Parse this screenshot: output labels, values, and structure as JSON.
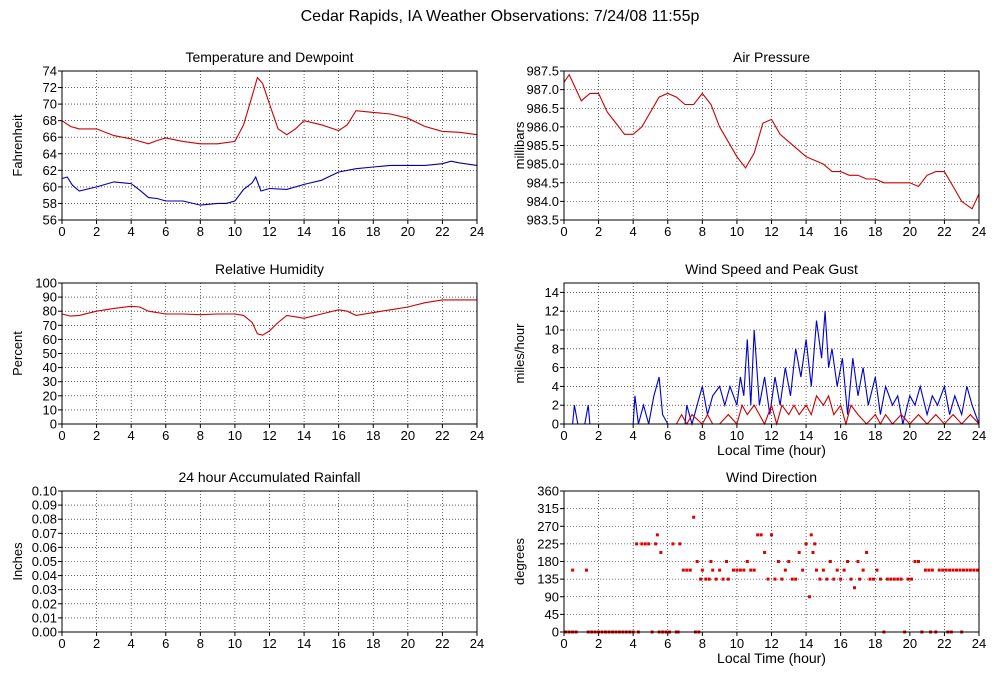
{
  "title": "Cedar Rapids, IA Weather Observations: 7/24/08 11:55p",
  "chart_data": [
    {
      "id": "temp",
      "type": "line",
      "title": "Temperature and Dewpoint",
      "xlabel": "",
      "ylabel": "Fahrenheit",
      "xlim": [
        0,
        24
      ],
      "ylim": [
        56,
        74
      ],
      "xticks": [
        0,
        2,
        4,
        6,
        8,
        10,
        12,
        14,
        16,
        18,
        20,
        22,
        24
      ],
      "yticks": [
        56,
        58,
        60,
        62,
        64,
        66,
        68,
        70,
        72,
        74
      ],
      "ytick_labels": [
        "56",
        "58",
        "60",
        "62",
        "64",
        "66",
        "68",
        "70",
        "72",
        "74"
      ],
      "grid": true,
      "series": [
        {
          "color": "#cc0000",
          "x": [
            0,
            0.5,
            1,
            2,
            3,
            4,
            5,
            5.5,
            6,
            7,
            8,
            9,
            10,
            10.5,
            11,
            11.3,
            11.6,
            12,
            12.5,
            13,
            13.5,
            14,
            15,
            16,
            16.5,
            17,
            18,
            19,
            20,
            21,
            22,
            23,
            24
          ],
          "y": [
            68,
            67.3,
            67,
            67,
            66.2,
            65.8,
            65.2,
            65.6,
            65.9,
            65.5,
            65.2,
            65.2,
            65.5,
            67.5,
            71,
            73.2,
            72.5,
            70,
            67,
            66.3,
            67,
            68,
            67.5,
            66.8,
            67.5,
            69.2,
            69,
            68.8,
            68.3,
            67.3,
            66.7,
            66.6,
            66.3
          ]
        },
        {
          "color": "#0000aa",
          "x": [
            0,
            0.3,
            0.6,
            1,
            2,
            3,
            4,
            4.5,
            5,
            5.5,
            6,
            7,
            8,
            9,
            9.5,
            10,
            10.5,
            11,
            11.2,
            11.5,
            12,
            13,
            14,
            15,
            16,
            17,
            18,
            19,
            20,
            21,
            22,
            22.5,
            23,
            24
          ],
          "y": [
            61,
            61.2,
            60.2,
            59.5,
            60,
            60.6,
            60.4,
            59.6,
            58.7,
            58.6,
            58.3,
            58.3,
            57.8,
            58,
            58,
            58.3,
            59.7,
            60.5,
            61.2,
            59.5,
            59.8,
            59.7,
            60.3,
            60.8,
            61.8,
            62.2,
            62.4,
            62.6,
            62.6,
            62.6,
            62.8,
            63.1,
            62.9,
            62.6
          ]
        }
      ]
    },
    {
      "id": "pressure",
      "type": "line",
      "title": "Air Pressure",
      "xlabel": "",
      "ylabel": "millibars",
      "xlim": [
        0,
        24
      ],
      "ylim": [
        983.5,
        987.5
      ],
      "xticks": [
        0,
        2,
        4,
        6,
        8,
        10,
        12,
        14,
        16,
        18,
        20,
        22,
        24
      ],
      "yticks": [
        983.5,
        984.0,
        984.5,
        985.0,
        985.5,
        986.0,
        986.5,
        987.0,
        987.5
      ],
      "ytick_labels": [
        "983.5",
        "984.0",
        "984.5",
        "985.0",
        "985.5",
        "986.0",
        "986.5",
        "987.0",
        "987.5"
      ],
      "grid": true,
      "series": [
        {
          "color": "#cc0000",
          "x": [
            0,
            0.3,
            0.6,
            1,
            1.5,
            2,
            2.5,
            3,
            3.5,
            4,
            4.5,
            5,
            5.5,
            6,
            6.5,
            7,
            7.5,
            8,
            8.5,
            9,
            9.5,
            10,
            10.5,
            11,
            11.5,
            12,
            12.5,
            13,
            13.5,
            14,
            14.5,
            15,
            15.5,
            16,
            16.5,
            17,
            17.5,
            18,
            18.5,
            19,
            19.5,
            20,
            20.5,
            21,
            21.5,
            22,
            22.5,
            23,
            23.3,
            23.6,
            24
          ],
          "y": [
            987.2,
            987.4,
            987.1,
            986.7,
            986.9,
            986.9,
            986.4,
            986.1,
            985.8,
            985.8,
            986.0,
            986.4,
            986.8,
            986.9,
            986.8,
            986.6,
            986.6,
            986.9,
            986.6,
            986.0,
            985.6,
            985.2,
            984.9,
            985.3,
            986.1,
            986.2,
            985.8,
            985.6,
            985.4,
            985.2,
            985.1,
            985.0,
            984.8,
            984.8,
            984.7,
            984.7,
            984.6,
            984.6,
            984.5,
            984.5,
            984.5,
            984.5,
            984.4,
            984.7,
            984.8,
            984.8,
            984.4,
            984.0,
            983.9,
            983.8,
            984.2
          ]
        }
      ]
    },
    {
      "id": "humidity",
      "type": "line",
      "title": "Relative Humidity",
      "xlabel": "",
      "ylabel": "Percent",
      "xlim": [
        0,
        24
      ],
      "ylim": [
        0,
        100
      ],
      "xticks": [
        0,
        2,
        4,
        6,
        8,
        10,
        12,
        14,
        16,
        18,
        20,
        22,
        24
      ],
      "yticks": [
        0,
        10,
        20,
        30,
        40,
        50,
        60,
        70,
        80,
        90,
        100
      ],
      "ytick_labels": [
        "0",
        "10",
        "20",
        "30",
        "40",
        "50",
        "60",
        "70",
        "80",
        "90",
        "100"
      ],
      "grid": true,
      "series": [
        {
          "color": "#cc0000",
          "x": [
            0,
            0.5,
            1,
            2,
            3,
            4,
            4.5,
            5,
            6,
            7,
            8,
            9,
            10,
            10.5,
            11,
            11.3,
            11.6,
            12,
            12.5,
            13,
            13.5,
            14,
            15,
            16,
            16.5,
            17,
            18,
            19,
            20,
            21,
            22,
            23,
            24
          ],
          "y": [
            78,
            76.5,
            77,
            80,
            82,
            83.5,
            83,
            80,
            78,
            78,
            77.5,
            78,
            78,
            77,
            72,
            64,
            63,
            66,
            72,
            77,
            76,
            75,
            78,
            81,
            80,
            77,
            79,
            81,
            83,
            86,
            88,
            88,
            88
          ]
        }
      ]
    },
    {
      "id": "wind",
      "type": "line",
      "title": "Wind Speed and Peak Gust",
      "xlabel": "Local Time (hour)",
      "ylabel": "miles/hour",
      "xlim": [
        0,
        24
      ],
      "ylim": [
        0,
        15
      ],
      "xticks": [
        0,
        2,
        4,
        6,
        8,
        10,
        12,
        14,
        16,
        18,
        20,
        22,
        24
      ],
      "yticks": [
        0,
        2,
        4,
        6,
        8,
        10,
        12,
        14
      ],
      "ytick_labels": [
        "0",
        "2",
        "4",
        "6",
        "8",
        "10",
        "12",
        "14"
      ],
      "grid": true,
      "series": [
        {
          "color": "#0000cc",
          "x": [
            0,
            0.5,
            0.6,
            0.8,
            1,
            1.2,
            1.4,
            1.5,
            1.7,
            2,
            3,
            4,
            4.1,
            4.3,
            4.6,
            4.9,
            5.2,
            5.5,
            5.7,
            6,
            7,
            7.1,
            7.4,
            7.7,
            8,
            8.3,
            8.6,
            9,
            9.3,
            9.6,
            10,
            10.2,
            10.4,
            10.6,
            10.8,
            11,
            11.3,
            11.6,
            11.9,
            12.2,
            12.5,
            12.8,
            13.1,
            13.4,
            13.7,
            14,
            14.3,
            14.6,
            14.9,
            15.1,
            15.3,
            15.5,
            15.8,
            16.1,
            16.4,
            16.7,
            17,
            17.3,
            17.6,
            18,
            18.3,
            18.6,
            19,
            19.3,
            19.6,
            20,
            20.3,
            20.6,
            21,
            21.3,
            21.6,
            22,
            22.3,
            22.6,
            23,
            23.3,
            23.6,
            24
          ],
          "y": [
            0,
            0,
            2,
            0,
            0,
            0,
            2,
            0,
            0,
            0,
            0,
            0,
            3,
            0,
            2,
            0,
            3,
            5,
            1,
            0,
            0,
            2,
            0,
            2,
            4,
            1,
            3,
            4,
            2,
            4,
            2,
            5,
            3,
            9,
            2,
            10,
            2,
            5,
            1,
            5,
            2,
            6,
            3,
            8,
            5,
            9,
            4,
            11,
            7,
            12,
            6,
            8,
            4,
            7,
            1,
            7,
            3,
            6,
            2,
            5,
            1,
            4,
            2,
            3,
            0,
            3,
            2,
            4,
            1,
            3,
            2,
            4,
            1,
            3,
            1,
            4,
            2,
            0
          ]
        },
        {
          "color": "#cc0000",
          "x": [
            0,
            4,
            6.5,
            6.8,
            7.1,
            7.4,
            8,
            8.3,
            8.6,
            9,
            9.5,
            10,
            10.3,
            10.6,
            11,
            11.3,
            11.6,
            12,
            12.3,
            12.6,
            13,
            13.3,
            13.6,
            14,
            14.3,
            14.6,
            15,
            15.3,
            15.6,
            16,
            16.3,
            16.6,
            17,
            17.5,
            18,
            18.3,
            18.6,
            19,
            19.5,
            20,
            20.5,
            21,
            21.5,
            22,
            22.5,
            23,
            23.5,
            24
          ],
          "y": [
            0,
            0,
            0,
            1,
            0,
            1,
            0,
            1,
            0,
            0,
            1,
            0,
            2,
            1,
            2,
            1,
            0,
            2,
            0,
            2,
            1,
            2,
            1,
            2,
            1,
            3,
            2,
            3,
            1,
            2,
            0,
            2,
            1,
            0,
            1,
            0,
            1,
            0,
            1,
            0,
            1,
            0,
            1,
            0,
            1,
            0,
            1,
            0
          ]
        }
      ]
    },
    {
      "id": "rain",
      "type": "line",
      "title": "24 hour Accumulated Rainfall",
      "xlabel": "",
      "ylabel": "Inches",
      "xlim": [
        0,
        24
      ],
      "ylim": [
        0,
        0.1
      ],
      "xticks": [
        0,
        2,
        4,
        6,
        8,
        10,
        12,
        14,
        16,
        18,
        20,
        22,
        24
      ],
      "yticks": [
        0,
        0.01,
        0.02,
        0.03,
        0.04,
        0.05,
        0.06,
        0.07,
        0.08,
        0.09,
        0.1
      ],
      "ytick_labels": [
        "0.00",
        "0.01",
        "0.02",
        "0.03",
        "0.04",
        "0.05",
        "0.06",
        "0.07",
        "0.08",
        "0.09",
        "0.10"
      ],
      "grid": true,
      "series": [
        {
          "color": "#cc0000",
          "x": [
            0,
            24
          ],
          "y": [
            0,
            0
          ]
        }
      ]
    },
    {
      "id": "direction",
      "type": "scatter",
      "title": "Wind Direction",
      "xlabel": "Local Time (hour)",
      "ylabel": "degrees",
      "xlim": [
        0,
        24
      ],
      "ylim": [
        0,
        360
      ],
      "xticks": [
        0,
        2,
        4,
        6,
        8,
        10,
        12,
        14,
        16,
        18,
        20,
        22,
        24
      ],
      "yticks": [
        0,
        45,
        90,
        135,
        180,
        225,
        270,
        315,
        360
      ],
      "ytick_labels": [
        "0",
        "45",
        "90",
        "135",
        "180",
        "225",
        "270",
        "315",
        "360"
      ],
      "grid": true,
      "series": [
        {
          "color": "#dd0000",
          "x": [
            0.1,
            0.3,
            0.5,
            0.5,
            0.7,
            1.3,
            1.4,
            1.6,
            1.8,
            2.0,
            2.2,
            2.4,
            2.6,
            2.8,
            3.0,
            3.2,
            3.4,
            3.6,
            3.8,
            4.0,
            4.2,
            4.3,
            4.5,
            4.7,
            4.9,
            5.1,
            5.3,
            5.4,
            5.5,
            5.6,
            5.7,
            5.9,
            6.1,
            6.3,
            6.5,
            6.6,
            6.7,
            6.9,
            7.1,
            7.3,
            7.5,
            7.6,
            7.7,
            7.8,
            7.9,
            8.0,
            8.2,
            8.4,
            8.5,
            8.6,
            8.8,
            9.0,
            9.2,
            9.4,
            9.5,
            9.8,
            10.0,
            10.2,
            10.4,
            10.6,
            10.8,
            11.0,
            11.2,
            11.4,
            11.6,
            11.8,
            12.0,
            12.2,
            12.4,
            12.6,
            12.8,
            13.0,
            13.2,
            13.4,
            13.6,
            13.8,
            14.0,
            14.2,
            14.3,
            14.4,
            14.5,
            14.6,
            14.8,
            15.0,
            15.2,
            15.4,
            15.6,
            15.8,
            16.0,
            16.2,
            16.4,
            16.6,
            16.8,
            17.0,
            17.1,
            17.3,
            17.5,
            17.7,
            17.9,
            18.1,
            18.3,
            18.5,
            18.7,
            18.9,
            19.1,
            19.3,
            19.5,
            19.7,
            19.9,
            20.1,
            20.3,
            20.5,
            20.7,
            20.9,
            21.1,
            21.3,
            21.5,
            21.7,
            21.9,
            22.1,
            22.3,
            22.5,
            22.7,
            22.9,
            23.1,
            23.3,
            23.5,
            23.7,
            23.9,
            21.2,
            22.2,
            22.4,
            23.0
          ],
          "y": [
            0,
            0,
            0,
            158,
            0,
            158,
            0,
            0,
            0,
            0,
            0,
            0,
            0,
            0,
            0,
            0,
            0,
            0,
            0,
            0,
            225,
            0,
            225,
            225,
            225,
            0,
            225,
            248,
            0,
            203,
            0,
            0,
            0,
            225,
            0,
            0,
            225,
            158,
            158,
            158,
            293,
            0,
            180,
            0,
            135,
            158,
            135,
            135,
            180,
            158,
            135,
            158,
            135,
            180,
            135,
            158,
            158,
            158,
            158,
            180,
            158,
            158,
            248,
            248,
            203,
            135,
            248,
            135,
            180,
            135,
            158,
            180,
            135,
            135,
            203,
            158,
            225,
            90,
            248,
            203,
            225,
            158,
            135,
            158,
            135,
            180,
            135,
            158,
            135,
            158,
            180,
            135,
            113,
            180,
            135,
            158,
            203,
            135,
            135,
            158,
            135,
            0,
            135,
            135,
            135,
            135,
            135,
            0,
            135,
            135,
            180,
            180,
            0,
            158,
            158,
            158,
            0,
            158,
            158,
            158,
            158,
            158,
            158,
            158,
            158,
            158,
            158,
            158,
            158,
            0,
            0,
            0,
            0
          ]
        }
      ]
    }
  ]
}
